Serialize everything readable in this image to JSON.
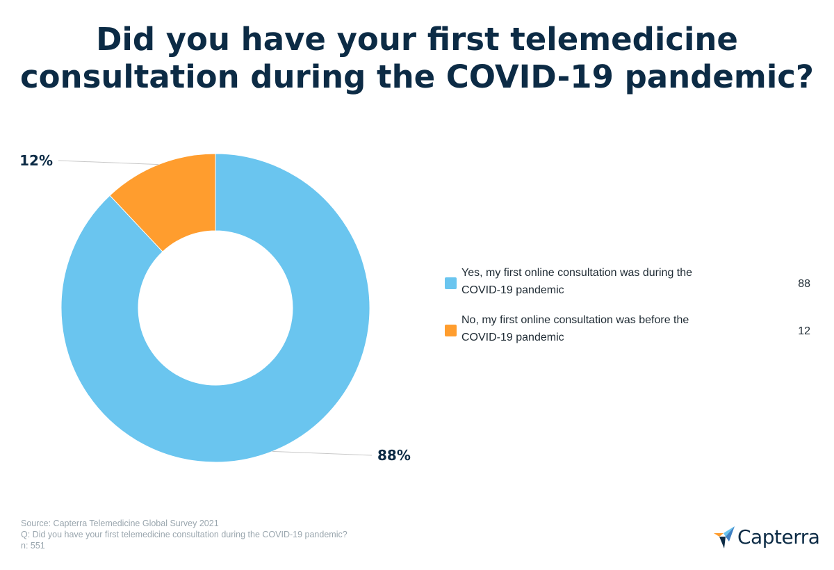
{
  "title": {
    "line1": "Did you have your first telemedicine",
    "line2": "consultation during the COVID-19 pandemic?"
  },
  "chart_data": {
    "type": "pie",
    "variant": "donut",
    "slices": [
      {
        "label": "Yes, my first online consultation was during the COVID-19 pandemic",
        "legend_line1": "Yes, my first online consultation was during the",
        "legend_line2": "COVID-19 pandemic",
        "value": 88,
        "display": "88%",
        "color": "#6ac5ef"
      },
      {
        "label": "No, my first online consultation was before the COVID-19 pandemic",
        "legend_line1": "No, my first online consultation was before the",
        "legend_line2": "COVID-19 pandemic",
        "value": 12,
        "display": "12%",
        "color": "#ff9d2e"
      }
    ],
    "legend_position": "right"
  },
  "footer": {
    "source": "Source: Capterra Telemedicine Global Survey 2021",
    "question": "Q: Did you have your first telemedicine consultation during the COVID-19 pandemic?",
    "sample": "n: 551"
  },
  "brand": {
    "name": "Capterra",
    "icon": "capterra-logo-icon"
  }
}
